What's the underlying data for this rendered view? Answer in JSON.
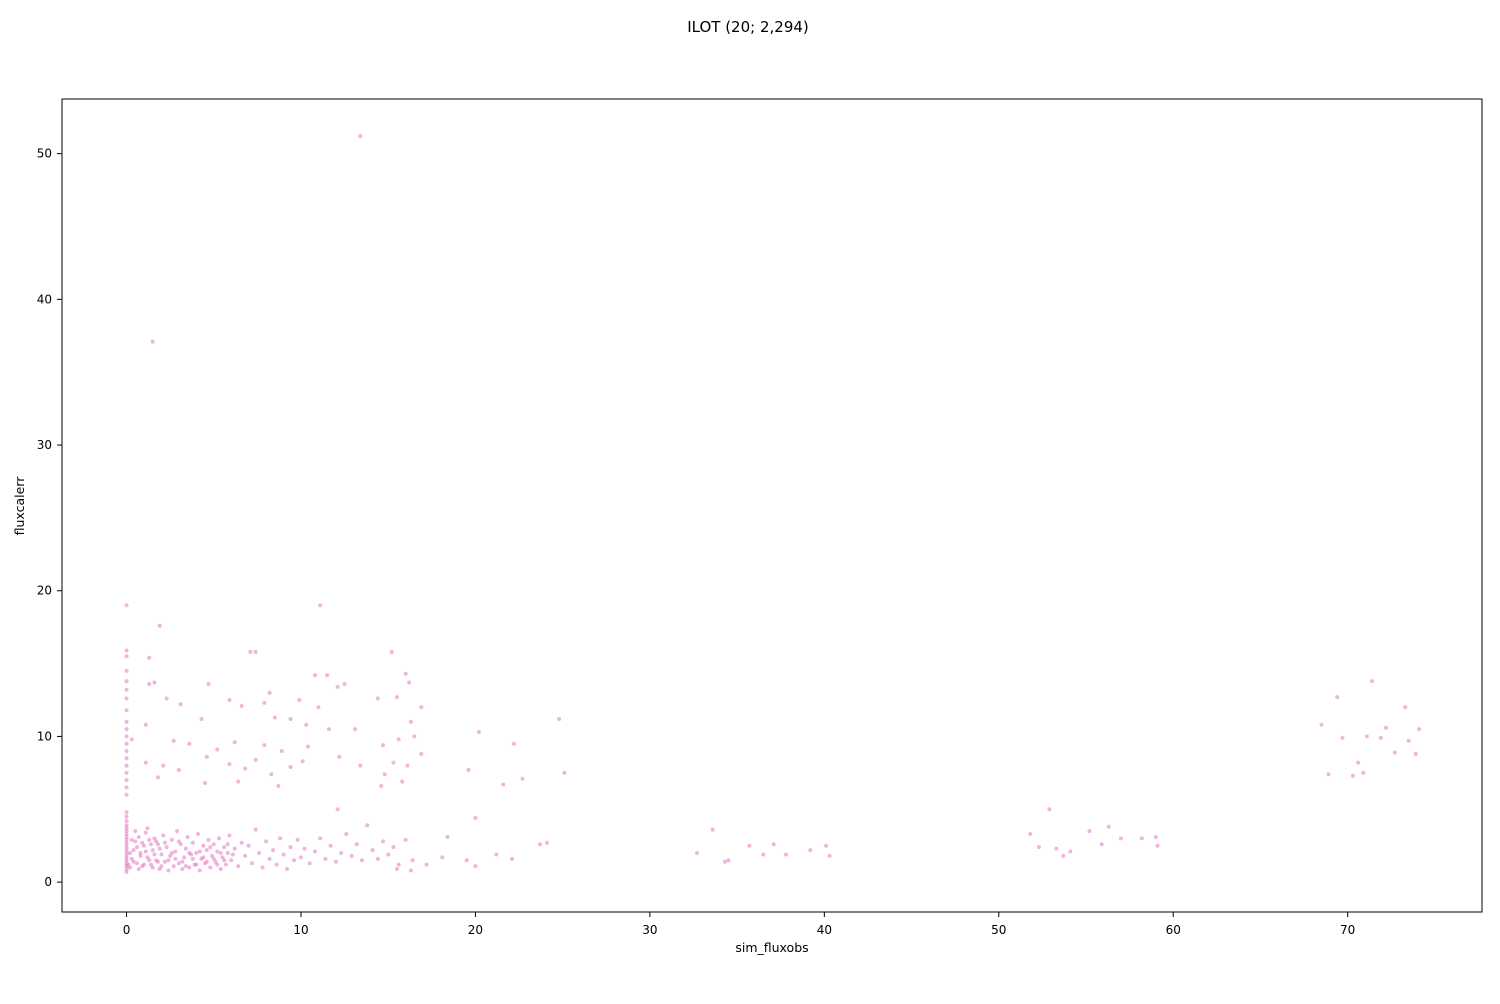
{
  "chart_data": {
    "type": "scatter",
    "title": "ILOT (20; 2,294)",
    "xlabel": "sim_fluxobs",
    "ylabel": "fluxcalerr",
    "xlim": [
      -3.7,
      77.7
    ],
    "ylim": [
      -2.05,
      53.75
    ],
    "xticks": [
      0,
      10,
      20,
      30,
      40,
      50,
      60,
      70
    ],
    "yticks": [
      0,
      10,
      20,
      30,
      40,
      50
    ],
    "marker_color": "#e377c2",
    "marker_alpha": 0.55,
    "grid": false,
    "legend": "none",
    "points": [
      [
        13.4,
        51.2
      ],
      [
        1.5,
        37.1
      ],
      [
        0.0,
        19.0
      ],
      [
        11.1,
        19.0
      ],
      [
        1.9,
        17.6
      ],
      [
        7.1,
        15.8
      ],
      [
        7.4,
        15.8
      ],
      [
        15.2,
        15.8
      ],
      [
        1.3,
        15.4
      ],
      [
        0.0,
        15.5
      ],
      [
        0.0,
        15.9
      ],
      [
        10.8,
        14.2
      ],
      [
        11.5,
        14.2
      ],
      [
        16.0,
        14.3
      ],
      [
        16.2,
        13.7
      ],
      [
        12.1,
        13.4
      ],
      [
        12.5,
        13.6
      ],
      [
        1.3,
        13.6
      ],
      [
        1.6,
        13.7
      ],
      [
        4.7,
        13.6
      ],
      [
        8.2,
        13.0
      ],
      [
        0.0,
        14.5
      ],
      [
        0.0,
        13.8
      ],
      [
        0.0,
        13.2
      ],
      [
        0.0,
        12.6
      ],
      [
        2.3,
        12.6
      ],
      [
        3.1,
        12.2
      ],
      [
        5.9,
        12.5
      ],
      [
        6.6,
        12.1
      ],
      [
        7.9,
        12.3
      ],
      [
        9.9,
        12.5
      ],
      [
        11.0,
        12.0
      ],
      [
        14.4,
        12.6
      ],
      [
        15.5,
        12.7
      ],
      [
        16.9,
        12.0
      ],
      [
        16.3,
        11.0
      ],
      [
        24.8,
        11.2
      ],
      [
        4.3,
        11.2
      ],
      [
        8.5,
        11.3
      ],
      [
        9.4,
        11.2
      ],
      [
        10.3,
        10.8
      ],
      [
        0.0,
        11.8
      ],
      [
        0.0,
        11.0
      ],
      [
        0.0,
        10.5
      ],
      [
        1.1,
        10.8
      ],
      [
        0.0,
        10.0
      ],
      [
        0.0,
        9.5
      ],
      [
        0.0,
        9.0
      ],
      [
        0.0,
        8.5
      ],
      [
        0.0,
        8.0
      ],
      [
        0.0,
        7.5
      ],
      [
        0.0,
        7.0
      ],
      [
        0.0,
        6.5
      ],
      [
        0.0,
        6.0
      ],
      [
        0.3,
        9.8
      ],
      [
        2.7,
        9.7
      ],
      [
        3.6,
        9.5
      ],
      [
        5.2,
        9.1
      ],
      [
        6.2,
        9.6
      ],
      [
        7.9,
        9.4
      ],
      [
        8.9,
        9.0
      ],
      [
        10.4,
        9.3
      ],
      [
        11.6,
        10.5
      ],
      [
        13.1,
        10.5
      ],
      [
        14.7,
        9.4
      ],
      [
        15.6,
        9.8
      ],
      [
        16.5,
        10.0
      ],
      [
        20.2,
        10.3
      ],
      [
        22.2,
        9.5
      ],
      [
        1.1,
        8.2
      ],
      [
        2.1,
        8.0
      ],
      [
        3.0,
        7.7
      ],
      [
        4.6,
        8.6
      ],
      [
        5.9,
        8.1
      ],
      [
        6.8,
        7.8
      ],
      [
        7.4,
        8.4
      ],
      [
        8.3,
        7.4
      ],
      [
        9.4,
        7.9
      ],
      [
        10.1,
        8.3
      ],
      [
        12.2,
        8.6
      ],
      [
        13.4,
        8.0
      ],
      [
        14.8,
        7.4
      ],
      [
        15.3,
        8.2
      ],
      [
        16.1,
        8.0
      ],
      [
        16.9,
        8.8
      ],
      [
        19.6,
        7.7
      ],
      [
        22.7,
        7.1
      ],
      [
        25.1,
        7.5
      ],
      [
        21.6,
        6.7
      ],
      [
        1.8,
        7.2
      ],
      [
        4.5,
        6.8
      ],
      [
        6.4,
        6.9
      ],
      [
        8.7,
        6.6
      ],
      [
        14.6,
        6.6
      ],
      [
        15.8,
        6.9
      ],
      [
        12.1,
        5.0
      ],
      [
        20.0,
        4.4
      ],
      [
        33.6,
        3.6
      ],
      [
        52.9,
        5.0
      ],
      [
        56.3,
        3.8
      ],
      [
        51.8,
        3.3
      ],
      [
        55.2,
        3.5
      ],
      [
        57.0,
        3.0
      ],
      [
        58.2,
        3.0
      ],
      [
        59.0,
        3.1
      ],
      [
        23.7,
        2.6
      ],
      [
        24.1,
        2.7
      ],
      [
        18.4,
        3.1
      ],
      [
        35.7,
        2.5
      ],
      [
        37.1,
        2.6
      ],
      [
        39.2,
        2.2
      ],
      [
        40.1,
        2.5
      ],
      [
        32.7,
        2.0
      ],
      [
        34.5,
        1.5
      ],
      [
        36.5,
        1.9
      ],
      [
        37.8,
        1.9
      ],
      [
        40.3,
        1.8
      ],
      [
        52.3,
        2.4
      ],
      [
        53.3,
        2.3
      ],
      [
        54.1,
        2.1
      ],
      [
        55.9,
        2.6
      ],
      [
        59.1,
        2.5
      ],
      [
        21.2,
        1.9
      ],
      [
        22.1,
        1.6
      ],
      [
        19.5,
        1.5
      ],
      [
        20.0,
        1.1
      ],
      [
        17.2,
        1.2
      ],
      [
        18.1,
        1.7
      ],
      [
        15.5,
        0.9
      ],
      [
        16.3,
        0.8
      ],
      [
        53.7,
        1.8
      ],
      [
        34.3,
        1.4
      ],
      [
        68.5,
        10.8
      ],
      [
        69.4,
        12.7
      ],
      [
        69.7,
        9.9
      ],
      [
        70.3,
        7.3
      ],
      [
        70.6,
        8.2
      ],
      [
        71.4,
        13.8
      ],
      [
        71.9,
        9.9
      ],
      [
        72.2,
        10.6
      ],
      [
        72.7,
        8.9
      ],
      [
        73.3,
        12.0
      ],
      [
        73.5,
        9.7
      ],
      [
        73.9,
        8.8
      ],
      [
        74.1,
        10.5
      ],
      [
        68.9,
        7.4
      ],
      [
        71.1,
        10.0
      ],
      [
        70.9,
        7.5
      ],
      [
        0.0,
        0.7
      ],
      [
        0.0,
        0.9
      ],
      [
        0.0,
        1.1
      ],
      [
        0.0,
        1.3
      ],
      [
        0.0,
        1.5
      ],
      [
        0.0,
        1.7
      ],
      [
        0.0,
        1.9
      ],
      [
        0.0,
        2.1
      ],
      [
        0.0,
        2.3
      ],
      [
        0.0,
        2.5
      ],
      [
        0.0,
        2.7
      ],
      [
        0.0,
        2.9
      ],
      [
        0.0,
        3.1
      ],
      [
        0.0,
        3.3
      ],
      [
        0.0,
        3.5
      ],
      [
        0.0,
        3.7
      ],
      [
        0.0,
        3.9
      ],
      [
        0.0,
        4.2
      ],
      [
        0.0,
        4.5
      ],
      [
        0.0,
        4.8
      ],
      [
        0.2,
        1.0
      ],
      [
        0.3,
        1.6
      ],
      [
        0.4,
        2.2
      ],
      [
        0.5,
        2.8
      ],
      [
        0.6,
        1.3
      ],
      [
        0.7,
        3.1
      ],
      [
        0.8,
        2.0
      ],
      [
        0.9,
        1.1
      ],
      [
        1.0,
        2.5
      ],
      [
        1.1,
        3.4
      ],
      [
        1.2,
        1.7
      ],
      [
        1.3,
        2.9
      ],
      [
        1.4,
        1.2
      ],
      [
        1.5,
        2.2
      ],
      [
        1.6,
        3.0
      ],
      [
        1.7,
        1.5
      ],
      [
        1.8,
        2.6
      ],
      [
        1.9,
        0.9
      ],
      [
        2.0,
        1.9
      ],
      [
        2.1,
        3.2
      ],
      [
        2.2,
        1.4
      ],
      [
        2.3,
        2.4
      ],
      [
        2.4,
        0.8
      ],
      [
        2.5,
        1.8
      ],
      [
        2.6,
        2.9
      ],
      [
        2.7,
        1.1
      ],
      [
        2.8,
        2.1
      ],
      [
        2.9,
        3.5
      ],
      [
        3.0,
        1.3
      ],
      [
        3.1,
        2.6
      ],
      [
        3.2,
        0.9
      ],
      [
        3.3,
        1.7
      ],
      [
        3.4,
        2.3
      ],
      [
        3.5,
        3.1
      ],
      [
        3.6,
        1.0
      ],
      [
        3.7,
        1.9
      ],
      [
        3.8,
        2.7
      ],
      [
        3.9,
        1.2
      ],
      [
        4.0,
        2.0
      ],
      [
        4.1,
        3.3
      ],
      [
        4.2,
        0.8
      ],
      [
        4.3,
        1.6
      ],
      [
        4.4,
        2.5
      ],
      [
        4.5,
        1.3
      ],
      [
        4.6,
        2.2
      ],
      [
        4.7,
        2.9
      ],
      [
        4.8,
        1.0
      ],
      [
        4.9,
        1.8
      ],
      [
        5.0,
        2.6
      ],
      [
        5.1,
        1.4
      ],
      [
        5.2,
        2.1
      ],
      [
        5.3,
        3.0
      ],
      [
        5.4,
        0.9
      ],
      [
        5.5,
        1.7
      ],
      [
        5.6,
        2.4
      ],
      [
        5.7,
        1.2
      ],
      [
        5.8,
        2.0
      ],
      [
        5.9,
        3.2
      ],
      [
        6.0,
        1.5
      ],
      [
        6.2,
        2.3
      ],
      [
        6.4,
        1.1
      ],
      [
        6.6,
        2.7
      ],
      [
        6.8,
        1.8
      ],
      [
        7.0,
        2.5
      ],
      [
        7.2,
        1.3
      ],
      [
        7.4,
        3.6
      ],
      [
        7.6,
        2.0
      ],
      [
        7.8,
        1.0
      ],
      [
        8.0,
        2.8
      ],
      [
        8.2,
        1.6
      ],
      [
        8.4,
        2.2
      ],
      [
        8.6,
        1.2
      ],
      [
        8.8,
        3.0
      ],
      [
        9.0,
        1.9
      ],
      [
        9.2,
        0.9
      ],
      [
        9.4,
        2.4
      ],
      [
        9.6,
        1.5
      ],
      [
        9.8,
        2.9
      ],
      [
        10.0,
        1.7
      ],
      [
        10.2,
        2.3
      ],
      [
        10.5,
        1.3
      ],
      [
        10.8,
        2.1
      ],
      [
        11.1,
        3.0
      ],
      [
        11.4,
        1.6
      ],
      [
        11.7,
        2.5
      ],
      [
        12.0,
        1.4
      ],
      [
        12.3,
        2.0
      ],
      [
        12.6,
        3.3
      ],
      [
        12.9,
        1.8
      ],
      [
        13.2,
        2.6
      ],
      [
        13.5,
        1.5
      ],
      [
        13.8,
        3.9
      ],
      [
        14.1,
        2.2
      ],
      [
        14.4,
        1.6
      ],
      [
        14.7,
        2.8
      ],
      [
        15.0,
        1.9
      ],
      [
        15.3,
        2.4
      ],
      [
        15.6,
        1.2
      ],
      [
        16.0,
        2.9
      ],
      [
        16.4,
        1.5
      ],
      [
        0.1,
        1.2
      ],
      [
        0.2,
        2.0
      ],
      [
        0.3,
        2.9
      ],
      [
        0.4,
        1.4
      ],
      [
        0.5,
        3.5
      ],
      [
        0.6,
        2.4
      ],
      [
        0.7,
        0.9
      ],
      [
        0.8,
        1.8
      ],
      [
        0.9,
        2.7
      ],
      [
        1.0,
        1.2
      ],
      [
        1.1,
        2.1
      ],
      [
        1.2,
        3.7
      ],
      [
        1.3,
        1.5
      ],
      [
        1.4,
        2.6
      ],
      [
        1.5,
        1.0
      ],
      [
        1.6,
        1.9
      ],
      [
        1.7,
        2.8
      ],
      [
        1.8,
        1.4
      ],
      [
        1.9,
        2.3
      ],
      [
        2.0,
        1.1
      ],
      [
        2.2,
        2.7
      ],
      [
        2.4,
        1.5
      ],
      [
        2.6,
        2.0
      ],
      [
        2.8,
        1.6
      ],
      [
        3.0,
        2.8
      ],
      [
        3.2,
        1.4
      ],
      [
        3.4,
        1.1
      ],
      [
        3.6,
        2.0
      ],
      [
        3.8,
        1.6
      ],
      [
        4.0,
        1.2
      ],
      [
        4.2,
        2.1
      ],
      [
        4.4,
        1.7
      ],
      [
        4.6,
        1.4
      ],
      [
        4.8,
        2.4
      ],
      [
        5.0,
        1.6
      ],
      [
        5.2,
        1.2
      ],
      [
        5.4,
        2.0
      ],
      [
        5.6,
        1.5
      ],
      [
        5.8,
        2.6
      ],
      [
        6.1,
        1.9
      ]
    ]
  }
}
